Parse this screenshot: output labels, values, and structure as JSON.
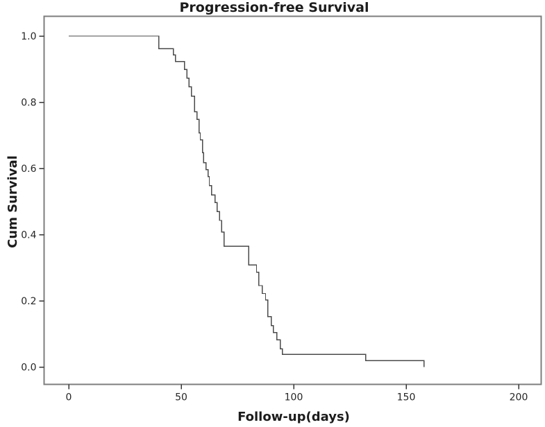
{
  "chart_data": {
    "type": "line",
    "subtype": "kaplan-meier-step-function",
    "title": "Progression-free Survival",
    "xlabel": "Follow-up(days)",
    "ylabel": "Cum Survival",
    "x_ticks": [
      0,
      50,
      100,
      150,
      200
    ],
    "y_ticks": [
      0.0,
      0.2,
      0.4,
      0.6,
      0.8,
      1.0
    ],
    "xlim": [
      -11,
      210
    ],
    "ylim": [
      -0.05,
      1.06
    ],
    "grid": false,
    "legend": null,
    "line_color": "#4a4a4a",
    "frame_color": "#7d7d7d",
    "tick_color": "#333333",
    "series": [
      {
        "name": "Progression-free survival",
        "step": "post",
        "points": [
          [
            0,
            1.0
          ],
          [
            40,
            0.962
          ],
          [
            46.5,
            0.943
          ],
          [
            47.5,
            0.923
          ],
          [
            51.5,
            0.899
          ],
          [
            52.5,
            0.873
          ],
          [
            53.5,
            0.847
          ],
          [
            54.5,
            0.818
          ],
          [
            56,
            0.771
          ],
          [
            57,
            0.748
          ],
          [
            58,
            0.707
          ],
          [
            58.5,
            0.686
          ],
          [
            59.5,
            0.648
          ],
          [
            60,
            0.617
          ],
          [
            61,
            0.596
          ],
          [
            62,
            0.575
          ],
          [
            62.5,
            0.548
          ],
          [
            63.5,
            0.52
          ],
          [
            65,
            0.497
          ],
          [
            66,
            0.47
          ],
          [
            67,
            0.443
          ],
          [
            68,
            0.408
          ],
          [
            69,
            0.365
          ],
          [
            80,
            0.308
          ],
          [
            83.5,
            0.286
          ],
          [
            84.5,
            0.246
          ],
          [
            86,
            0.222
          ],
          [
            87.5,
            0.203
          ],
          [
            88.5,
            0.152
          ],
          [
            90,
            0.125
          ],
          [
            91,
            0.104
          ],
          [
            92.5,
            0.082
          ],
          [
            94,
            0.055
          ],
          [
            95,
            0.038
          ],
          [
            132,
            0.019
          ],
          [
            158,
            0.0
          ]
        ]
      }
    ]
  }
}
